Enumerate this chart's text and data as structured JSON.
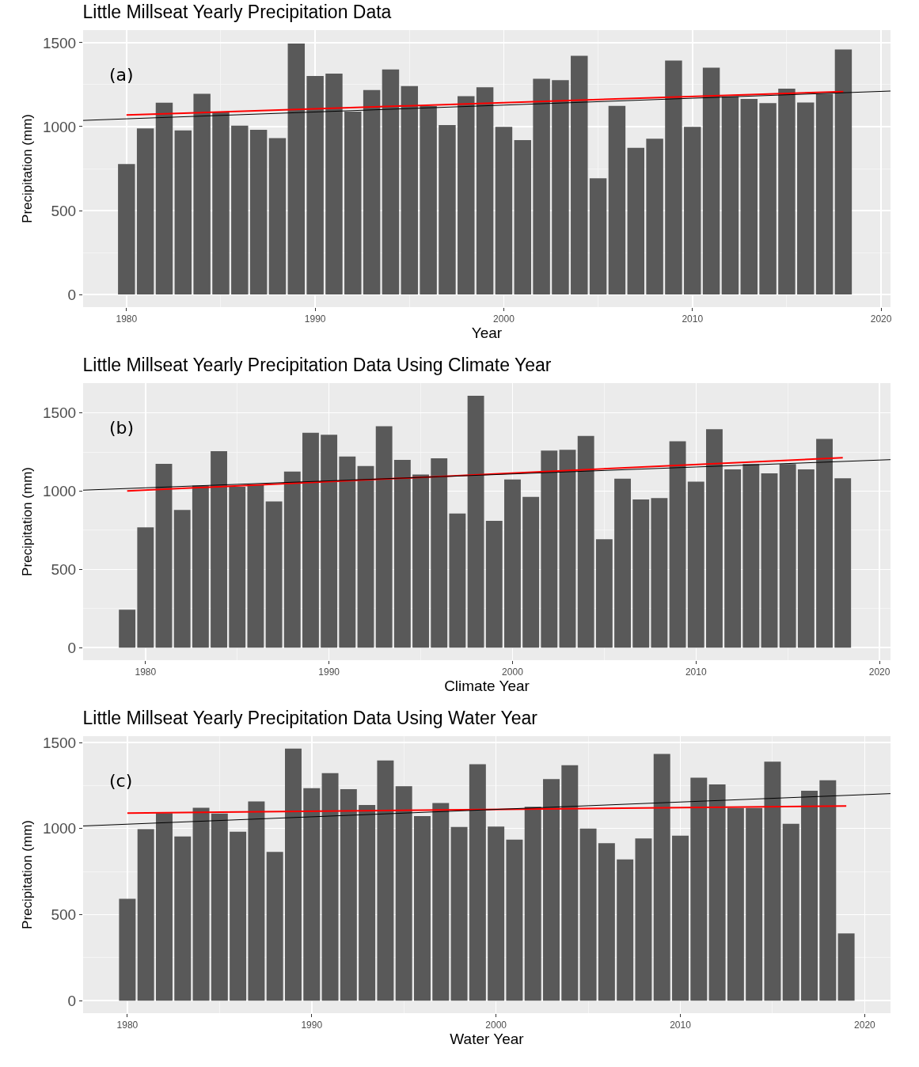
{
  "chart_data": [
    {
      "type": "bar",
      "title": "Little Millseat Yearly Precipitation Data",
      "xlabel": "Year",
      "ylabel": "Precipitation (mm)",
      "annotations": [
        "(a)"
      ],
      "grid": true,
      "xlim": [
        1977.7,
        2020.5
      ],
      "ylim": [
        -75,
        1575
      ],
      "xticks": [
        1980,
        1990,
        2000,
        2010,
        2020
      ],
      "yticks": [
        0,
        500,
        1000,
        1500
      ],
      "x": [
        1980,
        1981,
        1982,
        1983,
        1984,
        1985,
        1986,
        1987,
        1988,
        1989,
        1990,
        1991,
        1992,
        1993,
        1994,
        1995,
        1996,
        1997,
        1998,
        1999,
        2000,
        2001,
        2002,
        2003,
        2004,
        2005,
        2006,
        2007,
        2008,
        2009,
        2010,
        2011,
        2012,
        2013,
        2014,
        2015,
        2016,
        2017,
        2018
      ],
      "series": [
        {
          "color": "#595959",
          "values": [
            777,
            989,
            1142,
            977,
            1196,
            1089,
            1006,
            981,
            931,
            1495,
            1301,
            1316,
            1090,
            1218,
            1341,
            1241,
            1123,
            1009,
            1181,
            1234,
            999,
            920,
            1285,
            1277,
            1422,
            692,
            1124,
            874,
            928,
            1394,
            999,
            1351,
            1180,
            1165,
            1140,
            1226,
            1144,
            1196,
            1459
          ]
        },
        {
          "type": "line",
          "color": "#ff0000",
          "x": [
            1980,
            2018
          ],
          "values": [
            1069,
            1209
          ]
        },
        {
          "type": "line",
          "color": "#000000",
          "x": [
            1977.7,
            2020.5
          ],
          "values": [
            1037,
            1212
          ]
        }
      ]
    },
    {
      "type": "bar",
      "title": "Little Millseat Yearly Precipitation Data Using Climate Year",
      "xlabel": "Climate Year",
      "ylabel": "Precipitation (mm)",
      "annotations": [
        "(b)"
      ],
      "grid": true,
      "xlim": [
        1976.6,
        2020.6
      ],
      "ylim": [
        -80,
        1690
      ],
      "xticks": [
        1980,
        1990,
        2000,
        2010,
        2020
      ],
      "yticks": [
        0,
        500,
        1000,
        1500
      ],
      "x": [
        1979,
        1980,
        1981,
        1982,
        1983,
        1984,
        1985,
        1986,
        1987,
        1988,
        1989,
        1990,
        1991,
        1992,
        1993,
        1994,
        1995,
        1996,
        1997,
        1998,
        1999,
        2000,
        2001,
        2002,
        2003,
        2004,
        2005,
        2006,
        2007,
        2008,
        2009,
        2010,
        2011,
        2012,
        2013,
        2014,
        2015,
        2016,
        2017,
        2018
      ],
      "series": [
        {
          "color": "#595959",
          "values": [
            242,
            768,
            1174,
            879,
            1035,
            1255,
            1027,
            1043,
            934,
            1125,
            1373,
            1360,
            1221,
            1160,
            1414,
            1199,
            1106,
            1209,
            857,
            1609,
            810,
            1074,
            963,
            1259,
            1264,
            1352,
            693,
            1079,
            946,
            956,
            1318,
            1060,
            1395,
            1139,
            1173,
            1113,
            1173,
            1139,
            1333,
            1082
          ]
        },
        {
          "type": "line",
          "color": "#ff0000",
          "x": [
            1979,
            2018
          ],
          "values": [
            1001,
            1213
          ]
        },
        {
          "type": "line",
          "color": "#000000",
          "x": [
            1976.6,
            2020.6
          ],
          "values": [
            1006,
            1201
          ]
        }
      ]
    },
    {
      "type": "bar",
      "title": "Little Millseat Yearly Precipitation Data Using Water Year",
      "xlabel": "Water Year",
      "ylabel": "Precipitation (mm)",
      "annotations": [
        "(c)"
      ],
      "grid": true,
      "xlim": [
        1977.6,
        2021.4
      ],
      "ylim": [
        -73,
        1537
      ],
      "xticks": [
        1980,
        1990,
        2000,
        2010,
        2020
      ],
      "yticks": [
        0,
        500,
        1000,
        1500
      ],
      "x": [
        1980,
        1981,
        1982,
        1983,
        1984,
        1985,
        1986,
        1987,
        1988,
        1989,
        1990,
        1991,
        1992,
        1993,
        1994,
        1995,
        1996,
        1997,
        1998,
        1999,
        2000,
        2001,
        2002,
        2003,
        2004,
        2005,
        2006,
        2007,
        2008,
        2009,
        2010,
        2011,
        2012,
        2013,
        2014,
        2015,
        2016,
        2017,
        2018,
        2019
      ],
      "series": [
        {
          "color": "#595959",
          "values": [
            592,
            997,
            1090,
            954,
            1121,
            1087,
            982,
            1157,
            864,
            1464,
            1234,
            1322,
            1229,
            1137,
            1395,
            1246,
            1072,
            1148,
            1009,
            1374,
            1012,
            935,
            1126,
            1288,
            1368,
            1000,
            915,
            821,
            943,
            1434,
            959,
            1296,
            1256,
            1119,
            1119,
            1389,
            1028,
            1220,
            1280,
            390
          ]
        },
        {
          "type": "line",
          "color": "#ff0000",
          "x": [
            1980,
            2019
          ],
          "values": [
            1090,
            1131
          ]
        },
        {
          "type": "line",
          "color": "#000000",
          "x": [
            1977.6,
            2021.4
          ],
          "values": [
            1015,
            1203
          ]
        }
      ]
    }
  ]
}
